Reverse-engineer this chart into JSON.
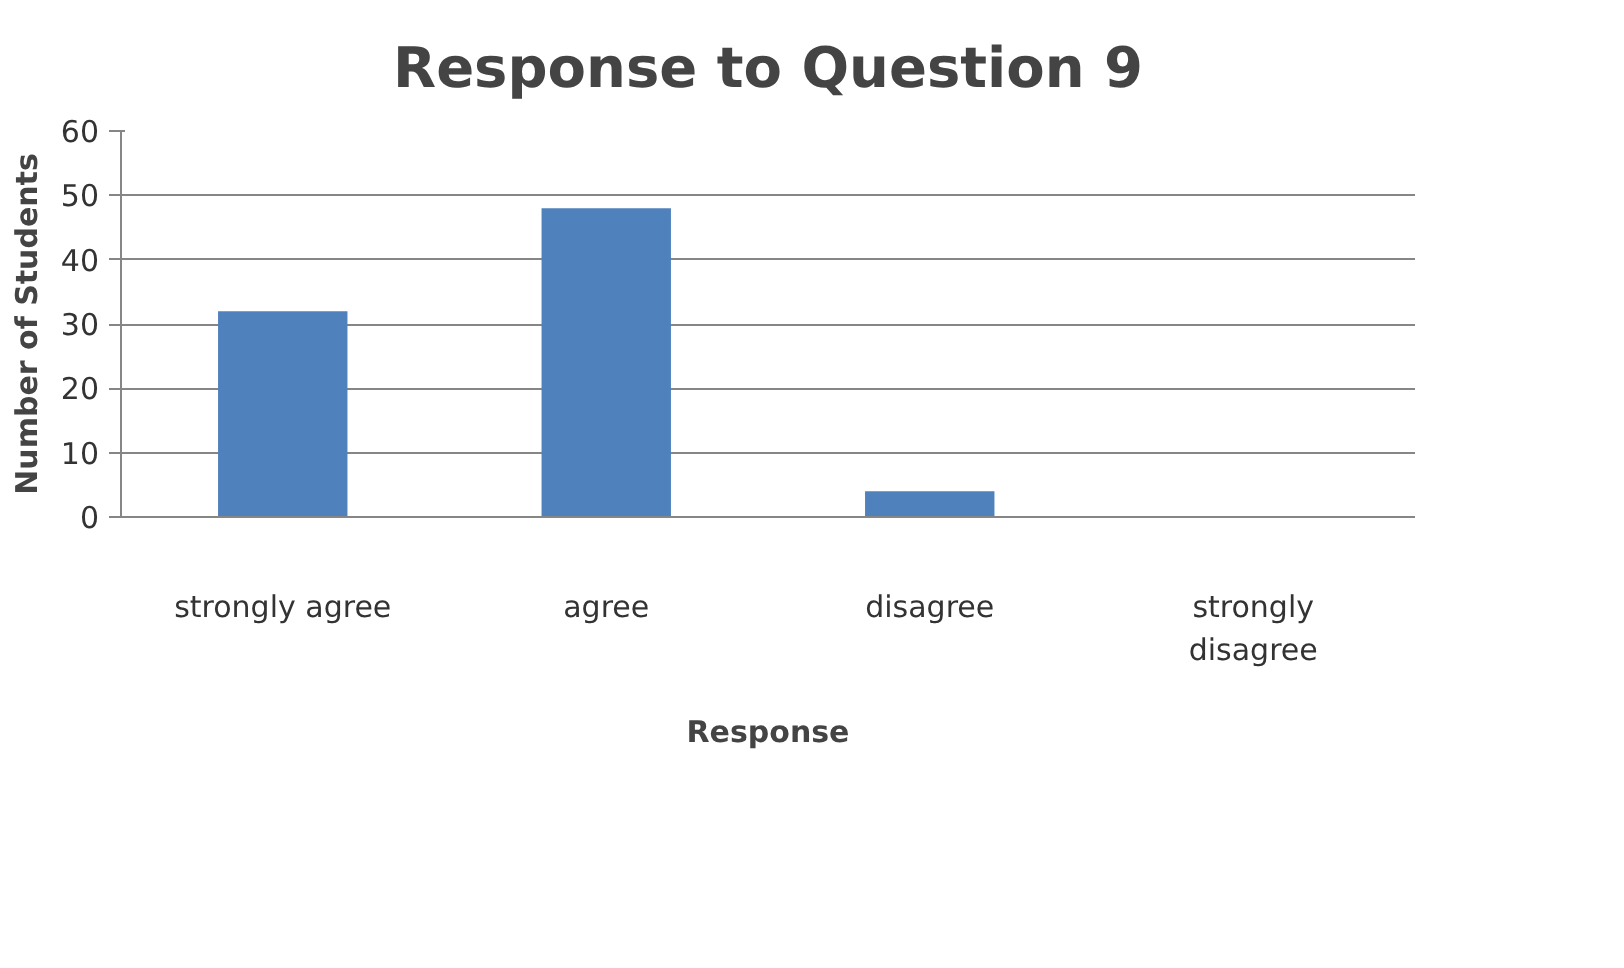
{
  "chart_data": {
    "type": "bar",
    "title": "Response to Question 9",
    "xlabel": "Response",
    "ylabel": "Number of Students",
    "categories": [
      "strongly agree",
      "agree",
      "disagree",
      "strongly disagree"
    ],
    "values": [
      32,
      48,
      4,
      0
    ],
    "color": "#4f81bd",
    "ylim": [
      0,
      60
    ],
    "yticks": [
      0,
      10,
      20,
      30,
      40,
      50,
      60
    ],
    "grid": "y"
  }
}
